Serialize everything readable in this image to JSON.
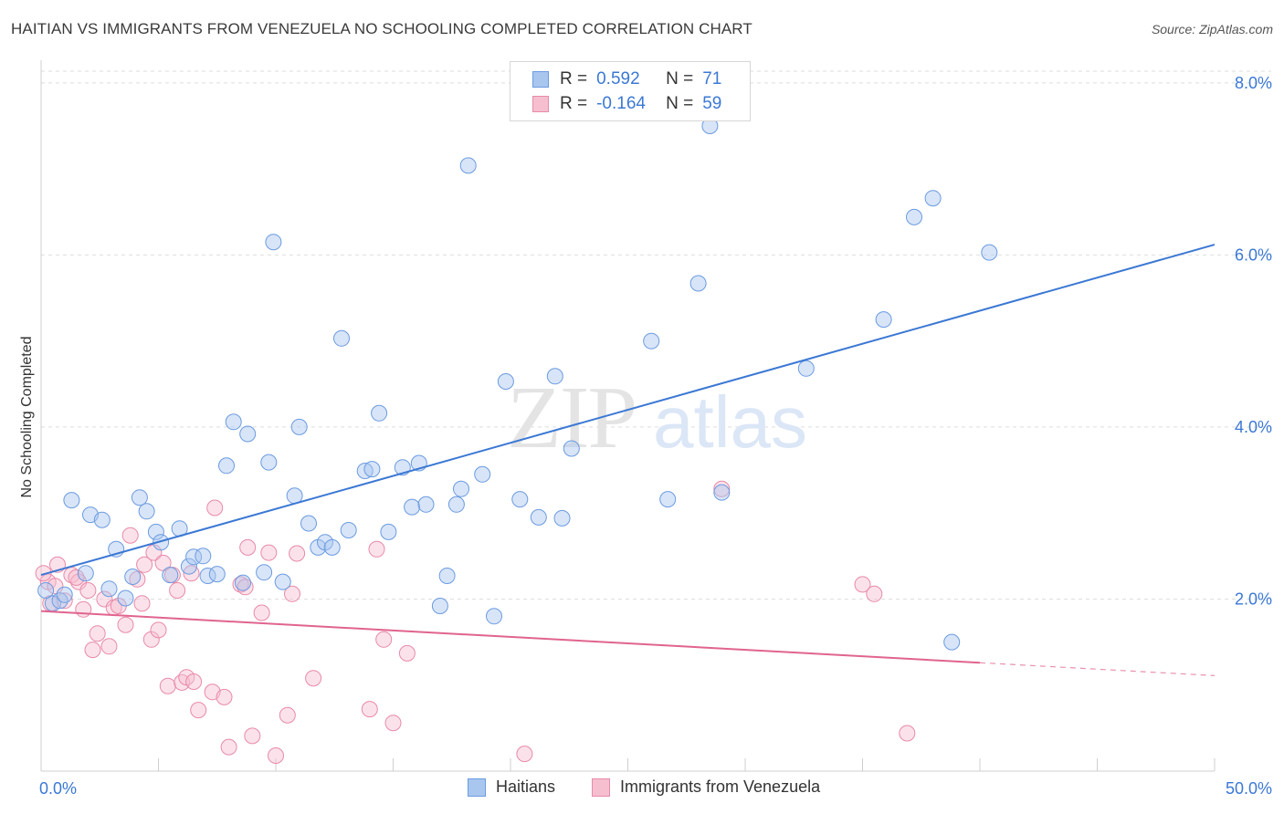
{
  "header": {
    "title": "HAITIAN VS IMMIGRANTS FROM VENEZUELA NO SCHOOLING COMPLETED CORRELATION CHART",
    "source": "Source: ZipAtlas.com"
  },
  "watermark": {
    "zip": "ZIP",
    "atlas": "atlas"
  },
  "legend": {
    "rows": [
      {
        "r_label": "R =",
        "r_value": "0.592",
        "n_label": "N =",
        "n_value": "71",
        "color": "#a9c6ef",
        "stroke": "#6b9be0"
      },
      {
        "r_label": "R =",
        "r_value": "-0.164",
        "n_label": "N =",
        "n_value": "59",
        "color": "#f6bfd0",
        "stroke": "#e88aa8"
      }
    ]
  },
  "bottom_legend": {
    "items": [
      {
        "label": "Haitians",
        "color": "#a9c6ef",
        "stroke": "#6b9be0"
      },
      {
        "label": "Immigrants from Venezuela",
        "color": "#f6bfd0",
        "stroke": "#e88aa8"
      }
    ]
  },
  "chart_data": {
    "type": "scatter",
    "title": "HAITIAN VS IMMIGRANTS FROM VENEZUELA NO SCHOOLING COMPLETED CORRELATION CHART",
    "xlabel": "",
    "ylabel": "No Schooling Completed",
    "xlim": [
      0,
      50
    ],
    "ylim": [
      0,
      8.2
    ],
    "x_tick_labels": [
      "0.0%",
      "50.0%"
    ],
    "y_ticks": [
      2,
      4,
      6,
      8
    ],
    "y_tick_labels": [
      "2.0%",
      "4.0%",
      "6.0%",
      "8.0%"
    ],
    "grid": true,
    "legend_position": "top-center",
    "colors": {
      "haitians": "#3b78d4",
      "venezuela": "#e0648f",
      "axis_text": "#3b78d4"
    },
    "series": [
      {
        "name": "Haitians",
        "trend": {
          "x": [
            0,
            50
          ],
          "y": [
            2.28,
            6.12
          ]
        },
        "points": [
          [
            0.5,
            1.95
          ],
          [
            0.8,
            1.98
          ],
          [
            1.0,
            2.05
          ],
          [
            1.3,
            3.15
          ],
          [
            1.9,
            2.3
          ],
          [
            2.1,
            2.98
          ],
          [
            2.6,
            2.92
          ],
          [
            2.9,
            2.12
          ],
          [
            3.2,
            2.58
          ],
          [
            3.6,
            2.01
          ],
          [
            3.9,
            2.26
          ],
          [
            4.2,
            3.18
          ],
          [
            4.5,
            3.02
          ],
          [
            4.9,
            2.78
          ],
          [
            5.1,
            2.66
          ],
          [
            5.5,
            2.28
          ],
          [
            5.9,
            2.82
          ],
          [
            6.3,
            2.38
          ],
          [
            6.5,
            2.49
          ],
          [
            6.9,
            2.5
          ],
          [
            7.1,
            2.27
          ],
          [
            7.5,
            2.29
          ],
          [
            7.9,
            3.55
          ],
          [
            8.2,
            4.06
          ],
          [
            8.6,
            2.19
          ],
          [
            8.8,
            3.92
          ],
          [
            9.5,
            2.31
          ],
          [
            9.7,
            3.59
          ],
          [
            9.9,
            6.15
          ],
          [
            10.3,
            2.2
          ],
          [
            10.8,
            3.2
          ],
          [
            11.0,
            4.0
          ],
          [
            11.4,
            2.88
          ],
          [
            11.8,
            2.6
          ],
          [
            12.1,
            2.66
          ],
          [
            12.4,
            2.6
          ],
          [
            12.8,
            5.03
          ],
          [
            13.1,
            2.8
          ],
          [
            13.8,
            3.49
          ],
          [
            14.1,
            3.51
          ],
          [
            14.4,
            4.16
          ],
          [
            14.8,
            2.78
          ],
          [
            15.4,
            3.53
          ],
          [
            15.8,
            3.07
          ],
          [
            16.1,
            3.58
          ],
          [
            16.4,
            3.1
          ],
          [
            17.0,
            1.92
          ],
          [
            17.3,
            2.27
          ],
          [
            17.7,
            3.1
          ],
          [
            17.9,
            3.28
          ],
          [
            18.2,
            7.04
          ],
          [
            18.8,
            3.45
          ],
          [
            19.3,
            1.8
          ],
          [
            19.8,
            4.53
          ],
          [
            20.4,
            3.16
          ],
          [
            21.2,
            2.95
          ],
          [
            21.9,
            4.59
          ],
          [
            22.2,
            2.94
          ],
          [
            22.6,
            3.75
          ],
          [
            26.0,
            5.0
          ],
          [
            26.7,
            3.16
          ],
          [
            28.0,
            5.67
          ],
          [
            28.5,
            7.5
          ],
          [
            29.0,
            3.24
          ],
          [
            32.6,
            4.68
          ],
          [
            35.9,
            5.25
          ],
          [
            37.2,
            6.44
          ],
          [
            38.0,
            6.66
          ],
          [
            38.8,
            1.5
          ],
          [
            40.4,
            6.03
          ],
          [
            0.2,
            2.1
          ]
        ]
      },
      {
        "name": "Immigrants from Venezuela",
        "trend": {
          "x": [
            0,
            40
          ],
          "y": [
            1.86,
            1.26
          ]
        },
        "trend_dashed": {
          "x": [
            40,
            50
          ],
          "y": [
            1.26,
            1.11
          ]
        },
        "points": [
          [
            0.3,
            2.2
          ],
          [
            0.4,
            1.95
          ],
          [
            0.6,
            2.15
          ],
          [
            0.7,
            2.4
          ],
          [
            1.0,
            1.98
          ],
          [
            1.3,
            2.28
          ],
          [
            1.6,
            2.2
          ],
          [
            1.8,
            1.88
          ],
          [
            2.0,
            2.1
          ],
          [
            2.2,
            1.41
          ],
          [
            2.4,
            1.6
          ],
          [
            2.7,
            2.0
          ],
          [
            2.9,
            1.45
          ],
          [
            3.1,
            1.9
          ],
          [
            3.3,
            1.92
          ],
          [
            3.6,
            1.7
          ],
          [
            3.8,
            2.74
          ],
          [
            4.1,
            2.23
          ],
          [
            4.3,
            1.95
          ],
          [
            4.4,
            2.4
          ],
          [
            4.7,
            1.53
          ],
          [
            4.8,
            2.54
          ],
          [
            5.0,
            1.64
          ],
          [
            5.2,
            2.42
          ],
          [
            5.4,
            0.99
          ],
          [
            5.6,
            2.28
          ],
          [
            5.8,
            2.1
          ],
          [
            6.0,
            1.03
          ],
          [
            6.2,
            1.09
          ],
          [
            6.4,
            2.3
          ],
          [
            6.5,
            1.04
          ],
          [
            6.7,
            0.71
          ],
          [
            7.3,
            0.92
          ],
          [
            7.4,
            3.06
          ],
          [
            7.8,
            0.86
          ],
          [
            8.0,
            0.28
          ],
          [
            8.5,
            2.17
          ],
          [
            8.8,
            2.6
          ],
          [
            9.0,
            0.41
          ],
          [
            9.4,
            1.84
          ],
          [
            9.7,
            2.54
          ],
          [
            10.0,
            0.18
          ],
          [
            10.5,
            0.65
          ],
          [
            10.7,
            2.06
          ],
          [
            10.9,
            2.53
          ],
          [
            11.6,
            1.08
          ],
          [
            14.0,
            0.72
          ],
          [
            14.3,
            2.58
          ],
          [
            14.6,
            1.53
          ],
          [
            15.0,
            0.56
          ],
          [
            15.6,
            1.37
          ],
          [
            20.6,
            0.2
          ],
          [
            29.0,
            3.28
          ],
          [
            35.0,
            2.17
          ],
          [
            35.5,
            2.06
          ],
          [
            36.9,
            0.44
          ],
          [
            0.1,
            2.3
          ],
          [
            1.5,
            2.25
          ],
          [
            8.7,
            2.14
          ]
        ]
      }
    ]
  }
}
